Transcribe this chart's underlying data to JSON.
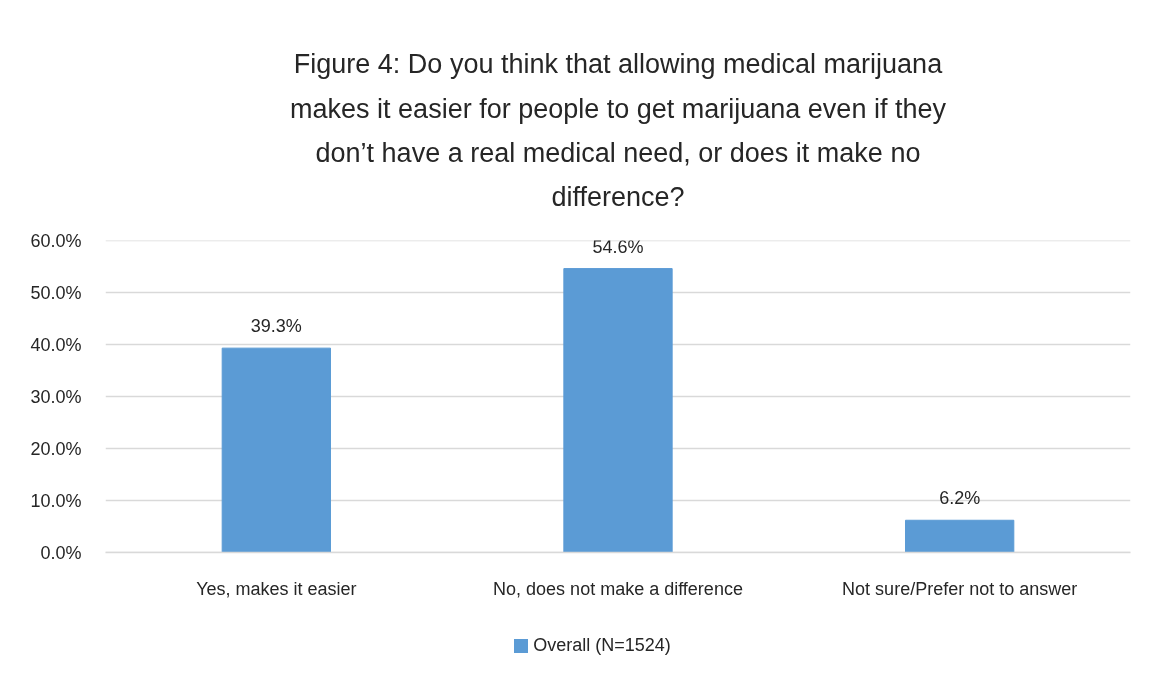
{
  "chart_data": {
    "type": "bar",
    "title": "Figure 4: Do you think that allowing medical marijuana makes it easier for people to get marijuana even if they don’t have a real medical need, or does it make no difference?",
    "categories": [
      "Yes, makes it easier",
      "No, does not make a difference",
      "Not sure/Prefer not to answer"
    ],
    "series": [
      {
        "name": "Overall (N=1524)",
        "color": "#5b9bd5",
        "values": [
          39.3,
          54.6,
          6.2
        ],
        "value_labels": [
          "39.3%",
          "54.6%",
          "6.2%"
        ]
      }
    ],
    "ylim": [
      0,
      60
    ],
    "yticks": [
      {
        "value": 0,
        "label": "0.0%"
      },
      {
        "value": 10,
        "label": "10.0%"
      },
      {
        "value": 20,
        "label": "20.0%"
      },
      {
        "value": 30,
        "label": "30.0%"
      },
      {
        "value": 40,
        "label": "40.0%"
      },
      {
        "value": 50,
        "label": "50.0%"
      },
      {
        "value": 60,
        "label": "60.0%"
      }
    ],
    "grid": "y",
    "legend": "bottom"
  }
}
